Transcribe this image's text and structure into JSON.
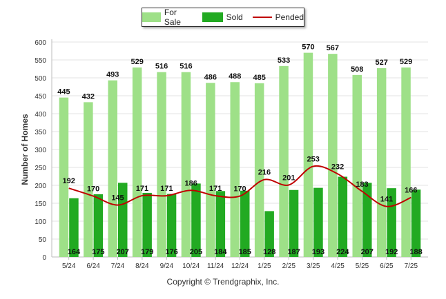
{
  "chart_data": {
    "type": "bar",
    "categories": [
      "5/24",
      "6/24",
      "7/24",
      "8/24",
      "9/24",
      "10/24",
      "11/24",
      "12/24",
      "1/25",
      "2/25",
      "3/25",
      "4/25",
      "5/25",
      "6/25",
      "7/25"
    ],
    "series": [
      {
        "name": "For Sale",
        "type": "bar",
        "color": "#9ee088",
        "values": [
          445,
          432,
          493,
          529,
          516,
          516,
          486,
          488,
          485,
          533,
          570,
          567,
          508,
          527,
          529
        ]
      },
      {
        "name": "Sold",
        "type": "bar",
        "color": "#22aa22",
        "values": [
          164,
          175,
          207,
          179,
          176,
          205,
          184,
          185,
          128,
          187,
          193,
          224,
          207,
          192,
          188
        ]
      },
      {
        "name": "Pended",
        "type": "line",
        "color": "#c00000",
        "values": [
          192,
          170,
          145,
          171,
          171,
          186,
          171,
          170,
          216,
          201,
          253,
          232,
          183,
          141,
          166
        ]
      }
    ],
    "ylabel": "Number of Homes",
    "ylim": [
      0,
      600
    ],
    "yticks": [
      0,
      50,
      100,
      150,
      200,
      250,
      300,
      350,
      400,
      450,
      500,
      550,
      600
    ],
    "grid": true,
    "legend_position": "top-center"
  },
  "legend": {
    "for_sale": "For Sale",
    "sold": "Sold",
    "pended": "Pended"
  },
  "footer": {
    "copyright": "Copyright © Trendgraphix, Inc."
  }
}
